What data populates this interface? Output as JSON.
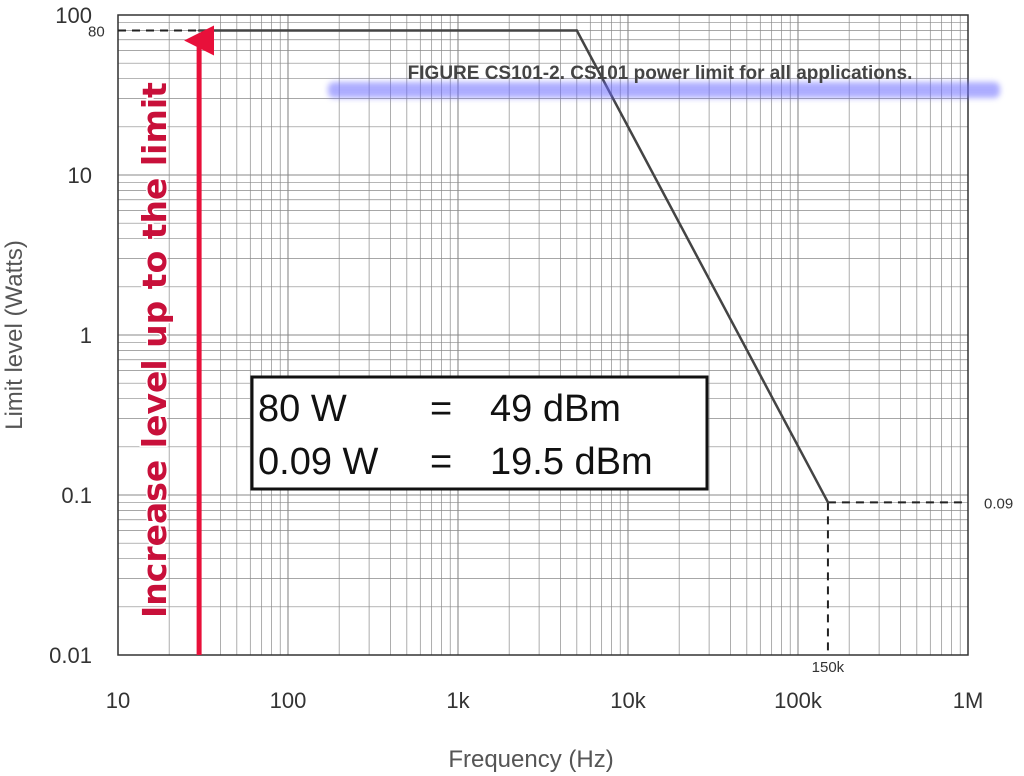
{
  "chart_data": {
    "type": "line",
    "title": "FIGURE CS101-2.  CS101 power limit for all applications.",
    "xlabel": "Frequency (Hz)",
    "ylabel": "Limit level (Watts)",
    "x_scale": "log",
    "y_scale": "log",
    "xlim": [
      10,
      1000000
    ],
    "ylim": [
      0.01,
      100
    ],
    "x_ticks": [
      {
        "value": 10,
        "label": "10"
      },
      {
        "value": 100,
        "label": "100"
      },
      {
        "value": 1000,
        "label": "1k"
      },
      {
        "value": 10000,
        "label": "10k"
      },
      {
        "value": 100000,
        "label": "100k"
      },
      {
        "value": 1000000,
        "label": "1M"
      }
    ],
    "y_ticks": [
      {
        "value": 0.01,
        "label": "0.01"
      },
      {
        "value": 0.1,
        "label": "0.1"
      },
      {
        "value": 1,
        "label": "1"
      },
      {
        "value": 10,
        "label": "10"
      },
      {
        "value": 100,
        "label": "100"
      }
    ],
    "grid": true,
    "series": [
      {
        "x": [
          10,
          5000,
          150000,
          1000000
        ],
        "y": [
          80,
          80,
          0.09,
          0.09
        ]
      }
    ],
    "reference_lines": [
      {
        "label": "80",
        "y": 80,
        "x_from": 10,
        "x_to": 30
      },
      {
        "label": "0.09",
        "y": 0.09,
        "x_from": 150000,
        "x_to": 1000000
      },
      {
        "label": "150k",
        "x": 150000,
        "y_from": 0.01,
        "y_to": 0.09
      }
    ],
    "annotations": {
      "arrow_text": "Increase level up to the limit",
      "arrow_x": 30,
      "arrow_y_from": 0.01,
      "arrow_y_to": 80,
      "box_lines": [
        [
          "80 W",
          "=",
          "49 dBm"
        ],
        [
          "0.09 W",
          "=",
          "19.5 dBm"
        ]
      ]
    },
    "colors": {
      "line": "#444444",
      "grid": "#8a8a8a",
      "arrow": "#e8103a",
      "title_glow": "#6b6bff"
    }
  }
}
